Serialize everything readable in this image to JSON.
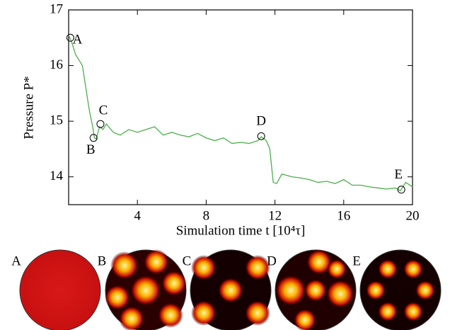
{
  "chart_data": {
    "type": "line",
    "x_label": "Simulation time t [10⁴τ]",
    "y_label": "Pressure P*",
    "x": [
      0,
      0.2,
      0.4,
      0.6,
      0.8,
      1.0,
      1.2,
      1.4,
      1.5,
      1.6,
      1.8,
      2.0,
      2.2,
      2.6,
      3.0,
      3.5,
      4.0,
      4.5,
      5.0,
      5.5,
      6.0,
      6.5,
      7.0,
      7.5,
      8.0,
      8.5,
      9.0,
      9.5,
      10.0,
      10.5,
      11.0,
      11.2,
      11.5,
      11.7,
      11.8,
      11.9,
      12.1,
      12.4,
      13.0,
      13.5,
      14.0,
      14.5,
      15.0,
      15.5,
      16.0,
      16.5,
      17.0,
      17.5,
      18.0,
      18.5,
      19.0,
      19.3,
      19.6,
      20.0
    ],
    "series": [
      {
        "color": "#4daf4a",
        "values": [
          16.55,
          16.4,
          16.2,
          16.1,
          16.0,
          15.6,
          15.2,
          14.9,
          14.7,
          14.68,
          14.9,
          14.85,
          14.95,
          14.8,
          14.75,
          14.85,
          14.8,
          14.85,
          14.9,
          14.75,
          14.8,
          14.75,
          14.72,
          14.78,
          14.7,
          14.65,
          14.7,
          14.6,
          14.62,
          14.6,
          14.65,
          14.72,
          14.65,
          14.5,
          14.2,
          13.9,
          13.88,
          14.05,
          14.0,
          13.98,
          13.95,
          13.9,
          13.92,
          13.88,
          13.95,
          13.85,
          13.85,
          13.82,
          13.8,
          13.78,
          13.8,
          13.75,
          13.9,
          13.82
        ]
      }
    ],
    "xlim": [
      0,
      20
    ],
    "xticks": [
      4,
      8,
      12,
      16,
      20
    ],
    "ylim": [
      13.5,
      17
    ],
    "yticks": [
      14,
      15,
      16,
      17
    ],
    "annotations": [
      {
        "label": "A",
        "x": 0.1,
        "y": 16.5
      },
      {
        "label": "B",
        "x": 1.45,
        "y": 14.7
      },
      {
        "label": "C",
        "x": 1.85,
        "y": 14.95
      },
      {
        "label": "D",
        "x": 11.2,
        "y": 14.73
      },
      {
        "label": "E",
        "x": 19.35,
        "y": 13.77
      }
    ],
    "panels": [
      "A",
      "B",
      "C",
      "D",
      "E"
    ]
  }
}
